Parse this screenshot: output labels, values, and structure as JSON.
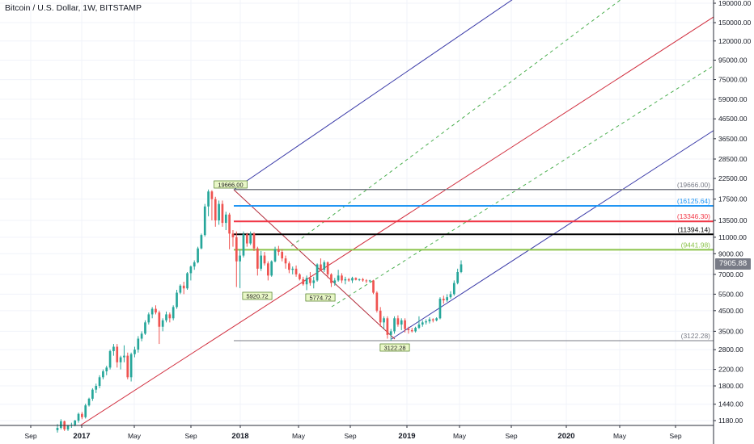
{
  "title": "Bitcoin / U.S. Dollar, 1W, BITSTAMP",
  "current_price": "7905.88",
  "chart_data": {
    "type": "candlestick",
    "price_scale": "log",
    "ylim": [
      1050,
      200000
    ],
    "y_ticks": [
      "190000.00",
      "150000.00",
      "120000.00",
      "95000.00",
      "75000.00",
      "59000.00",
      "46500.00",
      "36500.00",
      "28500.00",
      "22500.00",
      "17500.00",
      "13500.00",
      "11000.00",
      "9000.00",
      "7000.00",
      "5500.00",
      "4500.00",
      "3500.00",
      "2800.00",
      "2200.00",
      "1800.00",
      "1440.00",
      "1180.00"
    ],
    "x_ticks": [
      "Sep",
      "2017",
      "May",
      "Sep",
      "2018",
      "May",
      "Sep",
      "2019",
      "May",
      "Sep",
      "2020",
      "May",
      "Sep"
    ],
    "horizontal_levels": [
      {
        "label": "(19666.00)",
        "value": 19666,
        "color": "#787b86"
      },
      {
        "label": "(16125.64)",
        "value": 16125.64,
        "color": "#2196f3"
      },
      {
        "label": "(13346.30)",
        "value": 13346.3,
        "color": "#f23645"
      },
      {
        "label": "(11394.14)",
        "value": 11394.14,
        "color": "#000000"
      },
      {
        "label": "(9441.98)",
        "value": 9441.98,
        "color": "#8bc34a"
      },
      {
        "label": "(3122.28)",
        "value": 3122.28,
        "color": "#787b86"
      }
    ],
    "point_labels": [
      {
        "text": "19666.00",
        "value": 19666
      },
      {
        "text": "5920.72",
        "value": 5920.72
      },
      {
        "text": "5774.72",
        "value": 5774.72
      },
      {
        "text": "3122.28",
        "value": 3122.28
      }
    ],
    "candles": [
      [
        1050,
        1130,
        1020,
        1080
      ],
      [
        1080,
        1200,
        1060,
        1170
      ],
      [
        1170,
        1180,
        1040,
        1060
      ],
      [
        1060,
        1120,
        1040,
        1110
      ],
      [
        1110,
        1150,
        1080,
        1120
      ],
      [
        1120,
        1190,
        1100,
        1180
      ],
      [
        1180,
        1300,
        1150,
        1280
      ],
      [
        1280,
        1310,
        1200,
        1230
      ],
      [
        1230,
        1450,
        1210,
        1420
      ],
      [
        1420,
        1560,
        1400,
        1540
      ],
      [
        1540,
        1750,
        1500,
        1720
      ],
      [
        1720,
        1850,
        1650,
        1800
      ],
      [
        1800,
        2050,
        1750,
        2000
      ],
      [
        2000,
        2200,
        1950,
        2150
      ],
      [
        2150,
        2300,
        2050,
        2250
      ],
      [
        2250,
        2800,
        2200,
        2750
      ],
      [
        2750,
        3000,
        2600,
        2900
      ],
      [
        2900,
        3000,
        2250,
        2400
      ],
      [
        2400,
        2600,
        2200,
        2550
      ],
      [
        2550,
        2950,
        2400,
        2600
      ],
      [
        2600,
        2700,
        1950,
        2000
      ],
      [
        2000,
        2700,
        1900,
        2650
      ],
      [
        2650,
        2900,
        2550,
        2800
      ],
      [
        2800,
        3300,
        2700,
        3200
      ],
      [
        3200,
        3500,
        3100,
        3400
      ],
      [
        3400,
        4000,
        3350,
        3900
      ],
      [
        3900,
        4400,
        3800,
        4300
      ],
      [
        4300,
        4700,
        4100,
        4600
      ],
      [
        4600,
        4800,
        4300,
        4400
      ],
      [
        4400,
        4500,
        3000,
        3700
      ],
      [
        3700,
        4100,
        3500,
        4000
      ],
      [
        4000,
        4450,
        3900,
        4300
      ],
      [
        4300,
        4400,
        3900,
        4100
      ],
      [
        4100,
        4800,
        4000,
        4700
      ],
      [
        4700,
        5800,
        4600,
        5600
      ],
      [
        5600,
        6200,
        5500,
        6100
      ],
      [
        6100,
        6400,
        5500,
        5900
      ],
      [
        5900,
        7200,
        5800,
        7100
      ],
      [
        7100,
        7800,
        6500,
        7700
      ],
      [
        7700,
        8300,
        7400,
        8100
      ],
      [
        8100,
        9800,
        8000,
        9600
      ],
      [
        9600,
        11500,
        9500,
        11300
      ],
      [
        11300,
        16500,
        11100,
        16000
      ],
      [
        16000,
        19666,
        14200,
        19200
      ],
      [
        19200,
        19500,
        13500,
        17500
      ],
      [
        17500,
        18000,
        12500,
        13500
      ],
      [
        13500,
        17200,
        12800,
        16500
      ],
      [
        16500,
        17200,
        12500,
        13100
      ],
      [
        13100,
        15000,
        12000,
        14500
      ],
      [
        14500,
        14800,
        9500,
        11500
      ],
      [
        11500,
        12000,
        9800,
        11000
      ],
      [
        11000,
        11800,
        6000,
        8200
      ],
      [
        8200,
        9500,
        5920,
        8800
      ],
      [
        8800,
        11800,
        8600,
        11400
      ],
      [
        11400,
        11600,
        9800,
        10200
      ],
      [
        10200,
        11800,
        10000,
        11500
      ],
      [
        11500,
        11700,
        9300,
        9600
      ],
      [
        9600,
        9800,
        6900,
        7500
      ],
      [
        7500,
        9300,
        7300,
        8800
      ],
      [
        8800,
        9200,
        7800,
        8000
      ],
      [
        8000,
        8200,
        6500,
        6900
      ],
      [
        6900,
        8300,
        6800,
        8200
      ],
      [
        8200,
        9800,
        8100,
        9500
      ],
      [
        9500,
        9900,
        8800,
        9200
      ],
      [
        9200,
        9500,
        8200,
        8500
      ],
      [
        8500,
        8800,
        7500,
        8000
      ],
      [
        8000,
        8200,
        7100,
        7400
      ],
      [
        7400,
        7700,
        7000,
        7500
      ],
      [
        7500,
        7800,
        6800,
        7000
      ],
      [
        7000,
        7100,
        6500,
        6600
      ],
      [
        6600,
        6800,
        6100,
        6200
      ],
      [
        6200,
        6900,
        5774,
        6700
      ],
      [
        6700,
        7200,
        6100,
        6300
      ],
      [
        6300,
        6800,
        5900,
        6500
      ],
      [
        6500,
        8000,
        6400,
        7900
      ],
      [
        7900,
        8500,
        7300,
        7400
      ],
      [
        7400,
        8300,
        7200,
        8100
      ],
      [
        8100,
        8200,
        6700,
        7000
      ],
      [
        7000,
        7100,
        6000,
        6300
      ],
      [
        6300,
        6700,
        6100,
        6500
      ],
      [
        6500,
        7400,
        6400,
        6900
      ],
      [
        6900,
        7100,
        6300,
        6500
      ],
      [
        6500,
        6800,
        6200,
        6600
      ],
      [
        6600,
        6700,
        6400,
        6500
      ],
      [
        6500,
        6800,
        6300,
        6700
      ],
      [
        6700,
        6750,
        6500,
        6550
      ],
      [
        6550,
        6650,
        6450,
        6600
      ],
      [
        6600,
        6700,
        6400,
        6500
      ],
      [
        6500,
        6600,
        6300,
        6450
      ],
      [
        6450,
        6550,
        6350,
        6500
      ],
      [
        6500,
        6550,
        5500,
        5600
      ],
      [
        5600,
        5700,
        4400,
        4500
      ],
      [
        4500,
        4700,
        3700,
        3900
      ],
      [
        3900,
        4200,
        3600,
        4100
      ],
      [
        4100,
        4200,
        3200,
        3350
      ],
      [
        3350,
        3600,
        3122,
        3500
      ],
      [
        3500,
        4200,
        3400,
        4100
      ],
      [
        4100,
        4250,
        3700,
        3800
      ],
      [
        3800,
        4100,
        3550,
        4000
      ],
      [
        4000,
        4100,
        3450,
        3600
      ],
      [
        3600,
        3700,
        3400,
        3550
      ],
      [
        3550,
        3650,
        3450,
        3500
      ],
      [
        3500,
        3700,
        3450,
        3650
      ],
      [
        3650,
        4200,
        3600,
        3800
      ],
      [
        3800,
        4000,
        3700,
        3900
      ],
      [
        3900,
        4050,
        3800,
        3950
      ],
      [
        3950,
        4150,
        3850,
        4050
      ],
      [
        4050,
        4100,
        3900,
        4000
      ],
      [
        4000,
        4150,
        3950,
        4100
      ],
      [
        4100,
        5300,
        4050,
        5200
      ],
      [
        5200,
        5400,
        4900,
        5100
      ],
      [
        5100,
        5500,
        5000,
        5300
      ],
      [
        5300,
        5700,
        5200,
        5500
      ],
      [
        5500,
        6500,
        5400,
        6300
      ],
      [
        6300,
        7500,
        6200,
        7200
      ],
      [
        7200,
        8300,
        7100,
        7906
      ]
    ]
  }
}
